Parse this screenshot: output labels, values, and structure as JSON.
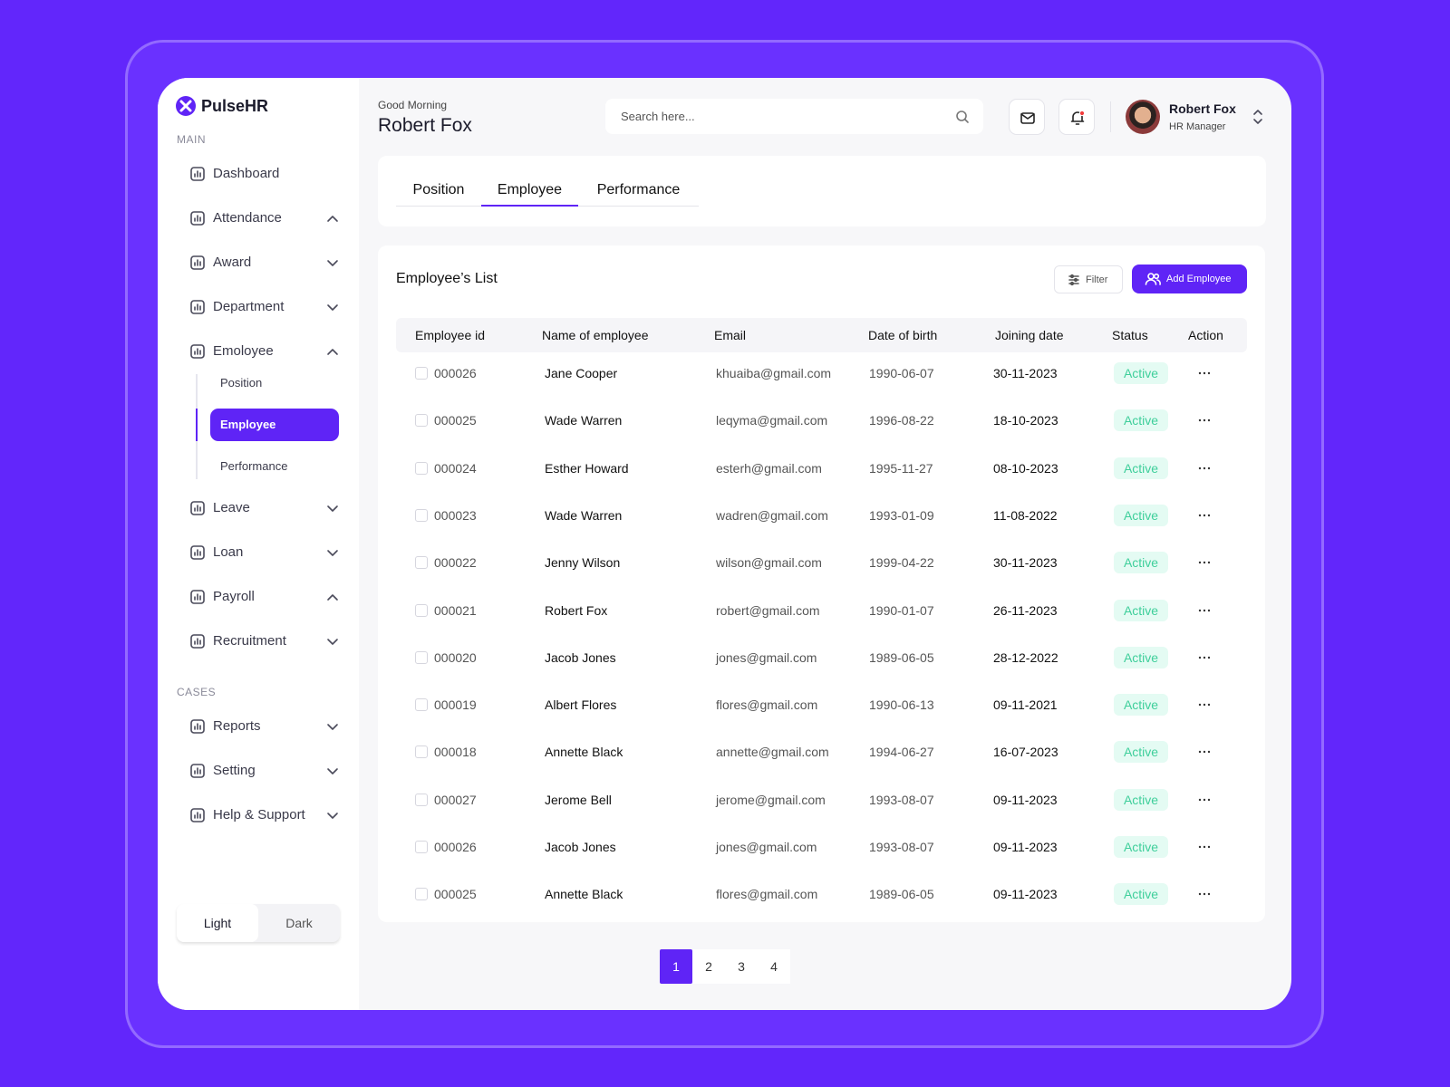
{
  "sidebar": {
    "brand": "PulseHR",
    "sections": [
      {
        "label": "MAIN",
        "items": [
          {
            "label": "Dashboard"
          },
          {
            "label": "Attendance",
            "expanded": true
          },
          {
            "label": "Award",
            "expanded": false
          },
          {
            "label": "Department",
            "expanded": false
          },
          {
            "label": "Emoloyee",
            "expanded": true,
            "children": [
              {
                "label": "Position"
              },
              {
                "label": "Employee",
                "active": true
              },
              {
                "label": "Performance"
              }
            ]
          },
          {
            "label": "Leave",
            "expanded": false
          },
          {
            "label": "Loan",
            "expanded": false
          },
          {
            "label": "Payroll",
            "expanded": true
          },
          {
            "label": "Recruitment",
            "expanded": false
          }
        ]
      },
      {
        "label": "CASES",
        "items": [
          {
            "label": "Reports",
            "expanded": false
          },
          {
            "label": "Setting",
            "expanded": false
          },
          {
            "label": "Help & Support",
            "expanded": false
          }
        ]
      }
    ],
    "theme": [
      {
        "label": "Light",
        "selected": true
      },
      {
        "label": "Dark"
      }
    ]
  },
  "header": {
    "greeting": "Good Morning",
    "name": "Robert Fox",
    "search_placeholder": "Search here...",
    "user": {
      "name": "Robert Fox",
      "role": "HR Manager"
    }
  },
  "tabs": [
    {
      "label": "Position"
    },
    {
      "label": "Employee",
      "active": true
    },
    {
      "label": "Performance"
    }
  ],
  "list": {
    "title": "Employee’s List",
    "filter_button": "Filter",
    "add_button": "Add Employee",
    "table": {
      "columns": [
        "Employee id",
        "Name of employee",
        "Email",
        "Date of birth",
        "Joining date",
        "Status",
        "Action"
      ],
      "rows": [
        [
          "000026",
          "Jane Cooper",
          "khuaiba@gmail.com",
          "1990-06-07",
          "30-11-2023",
          "Active"
        ],
        [
          "000025",
          "Wade Warren",
          "leqyma@gmail.com",
          "1996-08-22",
          "18-10-2023",
          "Active"
        ],
        [
          "000024",
          "Esther Howard",
          "esterh@gmail.com",
          "1995-11-27",
          "08-10-2023",
          "Active"
        ],
        [
          "000023",
          "Wade Warren",
          "wadren@gmail.com",
          "1993-01-09",
          "11-08-2022",
          "Active"
        ],
        [
          "000022",
          "Jenny Wilson",
          "wilson@gmail.com",
          "1999-04-22",
          "30-11-2023",
          "Active"
        ],
        [
          "000021",
          "Robert Fox",
          "robert@gmail.com",
          "1990-01-07",
          "26-11-2023",
          "Active"
        ],
        [
          "000020",
          "Jacob Jones",
          "jones@gmail.com",
          "1989-06-05",
          "28-12-2022",
          "Active"
        ],
        [
          "000019",
          "Albert Flores",
          "flores@gmail.com",
          "1990-06-13",
          "09-11-2021",
          "Active"
        ],
        [
          "000018",
          "Annette Black",
          "annette@gmail.com",
          "1994-06-27",
          "16-07-2023",
          "Active"
        ],
        [
          "000027",
          "Jerome Bell",
          "jerome@gmail.com",
          "1993-08-07",
          "09-11-2023",
          "Active"
        ],
        [
          "000026",
          "Jacob Jones",
          "jones@gmail.com",
          "1993-08-07",
          "09-11-2023",
          "Active"
        ],
        [
          "000025",
          "Annette Black",
          "flores@gmail.com",
          "1989-06-05",
          "09-11-2023",
          "Active"
        ]
      ]
    }
  },
  "pagination": [
    {
      "number": 1,
      "current": true
    },
    {
      "number": 2
    },
    {
      "number": 3
    },
    {
      "number": 4
    }
  ]
}
